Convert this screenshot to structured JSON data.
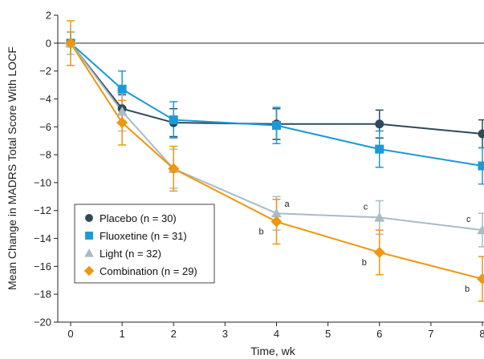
{
  "chart_data": {
    "type": "line",
    "title": "",
    "xlabel": "Time, wk",
    "ylabel": "Mean Change in MADRS Total Score With LOCF",
    "x": [
      0,
      1,
      2,
      4,
      6,
      8
    ],
    "xlim": [
      -0.5,
      8
    ],
    "ylim": [
      -20,
      2
    ],
    "x_ticks": [
      "0",
      "1",
      "2",
      "3",
      "4",
      "5",
      "6",
      "7",
      "8"
    ],
    "y_ticks": [
      "2",
      "0",
      "−2",
      "−4",
      "−6",
      "−8",
      "−10",
      "−12",
      "−14",
      "−16",
      "−18",
      "−20"
    ],
    "grid": false,
    "legend_position": "bottom-left",
    "series": [
      {
        "name": "Placebo (n = 30)",
        "color": "#2e4a5a",
        "marker": "circle",
        "values": [
          0,
          -4.7,
          -5.7,
          -5.8,
          -5.8,
          -6.5
        ],
        "error": [
          0.8,
          1.0,
          1.0,
          1.1,
          1.0,
          1.0
        ],
        "annotations": [
          "",
          "",
          "",
          "",
          "",
          ""
        ]
      },
      {
        "name": "Fluoxetine (n = 31)",
        "color": "#1a9ad6",
        "marker": "square",
        "values": [
          0,
          -3.3,
          -5.5,
          -5.9,
          -7.6,
          -8.8
        ],
        "error": [
          0.8,
          1.3,
          1.3,
          1.3,
          1.3,
          1.3
        ],
        "annotations": [
          "",
          "",
          "",
          "",
          "",
          ""
        ]
      },
      {
        "name": "Light (n = 32)",
        "color": "#a9bcc6",
        "marker": "triangle",
        "values": [
          0,
          -4.9,
          -9.0,
          -12.2,
          -12.5,
          -13.4
        ],
        "error": [
          0.8,
          1.4,
          1.4,
          1.2,
          1.2,
          1.2
        ],
        "annotations": [
          "",
          "",
          "",
          "a",
          "c",
          "c"
        ]
      },
      {
        "name": "Combination (n = 29)",
        "color": "#f0960f",
        "marker": "diamond",
        "values": [
          0,
          -5.7,
          -9.0,
          -12.8,
          -15.0,
          -16.9
        ],
        "error": [
          1.6,
          1.6,
          1.6,
          1.6,
          1.6,
          1.6
        ],
        "annotations": [
          "",
          "",
          "",
          "b",
          "b",
          "b"
        ]
      }
    ]
  }
}
